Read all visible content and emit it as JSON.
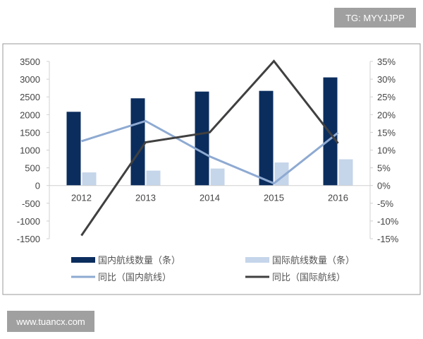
{
  "watermarks": {
    "top_right": "TG: MYYJJPP",
    "bottom_left": "www.tuancx.com"
  },
  "chart_data": {
    "type": "bar",
    "title": "",
    "categories": [
      "2012",
      "2013",
      "2014",
      "2015",
      "2016"
    ],
    "left_axis": {
      "ylim": [
        -1500,
        3500
      ],
      "ticks": [
        "3500",
        "3000",
        "2500",
        "2000",
        "1500",
        "1000",
        "500",
        "0",
        "-500",
        "-1000",
        "-1500"
      ]
    },
    "right_axis": {
      "ylim": [
        -15,
        35
      ],
      "unit": "%",
      "ticks": [
        "35%",
        "30%",
        "25%",
        "20%",
        "15%",
        "10%",
        "5%",
        "0%",
        "-5%",
        "-10%",
        "-15%"
      ]
    },
    "grid": false,
    "legend_placement": "bottom",
    "series": [
      {
        "name": "国内航线数量（条）",
        "type": "bar",
        "axis": "left",
        "color": "#0b2d5e",
        "values": [
          2080,
          2460,
          2650,
          2670,
          3050
        ]
      },
      {
        "name": "国际航线数量（条）",
        "type": "bar",
        "axis": "left",
        "color": "#c5d5ea",
        "values": [
          370,
          420,
          480,
          650,
          740
        ]
      },
      {
        "name": "同比（国内航线）",
        "type": "line",
        "axis": "right",
        "color": "#8eaad2",
        "values": [
          12.5,
          18.2,
          8.2,
          0.6,
          14.9
        ]
      },
      {
        "name": "同比（国际航线）",
        "type": "line",
        "axis": "right",
        "color": "#404040",
        "values": [
          -14.1,
          12.2,
          15.0,
          35.1,
          11.9
        ]
      }
    ]
  }
}
